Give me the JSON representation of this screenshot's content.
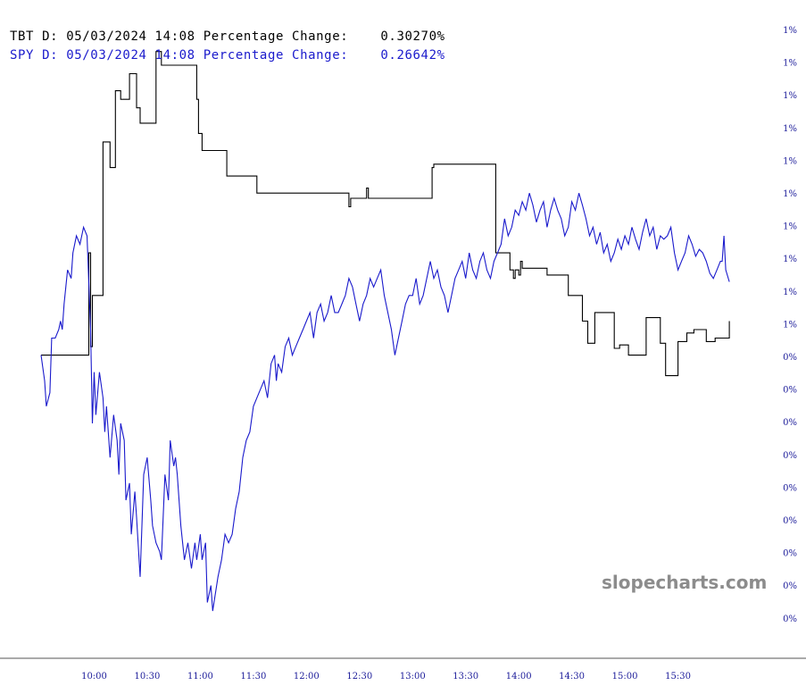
{
  "legend": [
    {
      "symbol": "TBT",
      "period": "D:",
      "date": "05/03/2024",
      "time": "14:08",
      "label": "Percentage Change:",
      "value": "0.30270%",
      "color": "#000000"
    },
    {
      "symbol": "SPY",
      "period": "D:",
      "date": "05/03/2024",
      "time": "14:08",
      "label": "Percentage Change:",
      "value": "0.26642%",
      "color": "#1a1acc"
    }
  ],
  "watermark": "slopecharts.com",
  "colors": {
    "tbt": "#000000",
    "spy": "#1a1acc",
    "axis_labels": "#1a1a99",
    "watermark": "#8c8c8c",
    "axis_line": "#555555"
  },
  "chart_data": {
    "type": "line",
    "title": "",
    "xlabel": "",
    "ylabel": "",
    "grid": false,
    "y_axis_side": "right",
    "x_ticks": [
      "10:00",
      "10:30",
      "11:00",
      "11:30",
      "12:00",
      "12:30",
      "13:00",
      "13:30",
      "14:00",
      "14:30",
      "15:00",
      "15:30"
    ],
    "x_tick_minutes": [
      600,
      630,
      660,
      690,
      720,
      750,
      780,
      810,
      840,
      870,
      900,
      930
    ],
    "x_range_minutes": [
      570,
      962
    ],
    "y_ticks": [
      "1%",
      "1%",
      "1%",
      "1%",
      "1%",
      "1%",
      "1%",
      "1%",
      "1%",
      "1%",
      "0%",
      "0%",
      "0%",
      "0%",
      "0%",
      "0%",
      "0%",
      "0%",
      "0%"
    ],
    "y_range": [
      -1.4,
      1.7
    ],
    "series": [
      {
        "name": "TBT",
        "color": "#000000",
        "step": true,
        "points": [
          [
            570,
            0
          ],
          [
            596,
            0
          ],
          [
            597,
            0.6
          ],
          [
            598,
            0.05
          ],
          [
            599,
            0.35
          ],
          [
            603,
            0.35
          ],
          [
            605,
            1.25
          ],
          [
            608,
            1.25
          ],
          [
            609,
            1.1
          ],
          [
            610,
            1.1
          ],
          [
            612,
            1.55
          ],
          [
            614,
            1.55
          ],
          [
            615,
            1.5
          ],
          [
            619,
            1.5
          ],
          [
            620,
            1.65
          ],
          [
            623,
            1.65
          ],
          [
            624,
            1.45
          ],
          [
            625,
            1.45
          ],
          [
            626,
            1.36
          ],
          [
            634,
            1.36
          ],
          [
            635,
            1.78
          ],
          [
            637,
            1.78
          ],
          [
            638,
            1.7
          ],
          [
            657,
            1.7
          ],
          [
            658,
            1.5
          ],
          [
            659,
            1.3
          ],
          [
            660,
            1.3
          ],
          [
            661,
            1.2
          ],
          [
            674,
            1.2
          ],
          [
            675,
            1.05
          ],
          [
            691,
            1.05
          ],
          [
            692,
            0.95
          ],
          [
            718,
            0.95
          ],
          [
            735,
            0.95
          ],
          [
            743,
            0.95
          ],
          [
            744,
            0.87
          ],
          [
            745,
            0.92
          ],
          [
            753,
            0.92
          ],
          [
            754,
            0.98
          ],
          [
            755,
            0.92
          ],
          [
            774,
            0.92
          ],
          [
            790,
            0.92
          ],
          [
            791,
            1.1
          ],
          [
            792,
            1.12
          ],
          [
            826,
            1.12
          ],
          [
            827,
            0.6
          ],
          [
            835,
            0.5
          ],
          [
            837,
            0.45
          ],
          [
            838,
            0.5
          ],
          [
            840,
            0.47
          ],
          [
            841,
            0.55
          ],
          [
            842,
            0.51
          ],
          [
            855,
            0.51
          ],
          [
            856,
            0.47
          ],
          [
            867,
            0.47
          ],
          [
            868,
            0.35
          ],
          [
            875,
            0.35
          ],
          [
            876,
            0.2
          ],
          [
            878,
            0.2
          ],
          [
            879,
            0.07
          ],
          [
            882,
            0.07
          ],
          [
            883,
            0.25
          ],
          [
            893,
            0.25
          ],
          [
            894,
            0.04
          ],
          [
            896,
            0.04
          ],
          [
            897,
            0.06
          ],
          [
            901,
            0.06
          ],
          [
            902,
            0
          ],
          [
            911,
            0
          ],
          [
            912,
            0.22
          ],
          [
            919,
            0.22
          ],
          [
            920,
            0.07
          ],
          [
            922,
            0.07
          ],
          [
            923,
            -0.12
          ],
          [
            929,
            -0.12
          ],
          [
            930,
            0.08
          ],
          [
            934,
            0.08
          ],
          [
            935,
            0.13
          ],
          [
            938,
            0.13
          ],
          [
            939,
            0.15
          ],
          [
            945,
            0.15
          ],
          [
            946,
            0.08
          ],
          [
            950,
            0.08
          ],
          [
            951,
            0.1
          ],
          [
            957,
            0.1
          ],
          [
            959,
            0.2
          ]
        ]
      },
      {
        "name": "SPY",
        "color": "#1a1acc",
        "step": false,
        "points": [
          [
            570,
            0
          ],
          [
            572,
            -0.15
          ],
          [
            573,
            -0.3
          ],
          [
            575,
            -0.22
          ],
          [
            576,
            0.1
          ],
          [
            578,
            0.1
          ],
          [
            580,
            0.15
          ],
          [
            581,
            0.2
          ],
          [
            582,
            0.15
          ],
          [
            583,
            0.3
          ],
          [
            585,
            0.5
          ],
          [
            587,
            0.45
          ],
          [
            588,
            0.6
          ],
          [
            590,
            0.7
          ],
          [
            592,
            0.65
          ],
          [
            594,
            0.75
          ],
          [
            596,
            0.7
          ],
          [
            598,
            0.15
          ],
          [
            599,
            -0.4
          ],
          [
            600,
            -0.1
          ],
          [
            601,
            -0.35
          ],
          [
            603,
            -0.1
          ],
          [
            605,
            -0.25
          ],
          [
            606,
            -0.45
          ],
          [
            607,
            -0.3
          ],
          [
            609,
            -0.6
          ],
          [
            611,
            -0.35
          ],
          [
            613,
            -0.5
          ],
          [
            614,
            -0.7
          ],
          [
            615,
            -0.4
          ],
          [
            617,
            -0.5
          ],
          [
            618,
            -0.85
          ],
          [
            620,
            -0.75
          ],
          [
            621,
            -1.05
          ],
          [
            623,
            -0.8
          ],
          [
            624,
            -0.95
          ],
          [
            626,
            -1.3
          ],
          [
            628,
            -0.7
          ],
          [
            630,
            -0.6
          ],
          [
            632,
            -0.85
          ],
          [
            633,
            -1.0
          ],
          [
            635,
            -1.1
          ],
          [
            637,
            -1.15
          ],
          [
            638,
            -1.2
          ],
          [
            640,
            -0.7
          ],
          [
            642,
            -0.85
          ],
          [
            643,
            -0.5
          ],
          [
            645,
            -0.65
          ],
          [
            646,
            -0.6
          ],
          [
            647,
            -0.7
          ],
          [
            649,
            -1.0
          ],
          [
            651,
            -1.2
          ],
          [
            653,
            -1.1
          ],
          [
            655,
            -1.25
          ],
          [
            657,
            -1.1
          ],
          [
            658,
            -1.2
          ],
          [
            660,
            -1.05
          ],
          [
            661,
            -1.2
          ],
          [
            663,
            -1.1
          ],
          [
            664,
            -1.45
          ],
          [
            666,
            -1.35
          ],
          [
            667,
            -1.5
          ],
          [
            670,
            -1.3
          ],
          [
            672,
            -1.2
          ],
          [
            674,
            -1.05
          ],
          [
            676,
            -1.1
          ],
          [
            678,
            -1.05
          ],
          [
            680,
            -0.9
          ],
          [
            682,
            -0.8
          ],
          [
            684,
            -0.6
          ],
          [
            686,
            -0.5
          ],
          [
            688,
            -0.45
          ],
          [
            690,
            -0.3
          ],
          [
            692,
            -0.25
          ],
          [
            694,
            -0.2
          ],
          [
            696,
            -0.15
          ],
          [
            698,
            -0.25
          ],
          [
            700,
            -0.05
          ],
          [
            702,
            0.0
          ],
          [
            703,
            -0.15
          ],
          [
            704,
            -0.05
          ],
          [
            706,
            -0.1
          ],
          [
            708,
            0.05
          ],
          [
            710,
            0.1
          ],
          [
            712,
            0.0
          ],
          [
            714,
            0.05
          ],
          [
            716,
            0.1
          ],
          [
            718,
            0.15
          ],
          [
            720,
            0.2
          ],
          [
            722,
            0.25
          ],
          [
            724,
            0.1
          ],
          [
            726,
            0.25
          ],
          [
            728,
            0.3
          ],
          [
            730,
            0.2
          ],
          [
            732,
            0.25
          ],
          [
            734,
            0.35
          ],
          [
            736,
            0.25
          ],
          [
            738,
            0.25
          ],
          [
            740,
            0.3
          ],
          [
            742,
            0.35
          ],
          [
            744,
            0.45
          ],
          [
            746,
            0.4
          ],
          [
            748,
            0.3
          ],
          [
            750,
            0.2
          ],
          [
            752,
            0.3
          ],
          [
            754,
            0.35
          ],
          [
            756,
            0.45
          ],
          [
            758,
            0.4
          ],
          [
            760,
            0.45
          ],
          [
            762,
            0.5
          ],
          [
            764,
            0.35
          ],
          [
            766,
            0.25
          ],
          [
            768,
            0.15
          ],
          [
            770,
            0.0
          ],
          [
            772,
            0.1
          ],
          [
            774,
            0.2
          ],
          [
            776,
            0.3
          ],
          [
            778,
            0.35
          ],
          [
            780,
            0.35
          ],
          [
            782,
            0.45
          ],
          [
            784,
            0.3
          ],
          [
            786,
            0.35
          ],
          [
            788,
            0.45
          ],
          [
            790,
            0.55
          ],
          [
            792,
            0.45
          ],
          [
            794,
            0.5
          ],
          [
            796,
            0.4
          ],
          [
            798,
            0.35
          ],
          [
            800,
            0.25
          ],
          [
            802,
            0.35
          ],
          [
            804,
            0.45
          ],
          [
            806,
            0.5
          ],
          [
            808,
            0.55
          ],
          [
            810,
            0.45
          ],
          [
            812,
            0.6
          ],
          [
            814,
            0.5
          ],
          [
            816,
            0.45
          ],
          [
            818,
            0.55
          ],
          [
            820,
            0.6
          ],
          [
            822,
            0.5
          ],
          [
            824,
            0.45
          ],
          [
            826,
            0.55
          ],
          [
            828,
            0.6
          ],
          [
            830,
            0.65
          ],
          [
            832,
            0.8
          ],
          [
            834,
            0.7
          ],
          [
            836,
            0.75
          ],
          [
            838,
            0.85
          ],
          [
            840,
            0.82
          ],
          [
            842,
            0.9
          ],
          [
            844,
            0.85
          ],
          [
            846,
            0.95
          ],
          [
            848,
            0.88
          ],
          [
            850,
            0.78
          ],
          [
            852,
            0.85
          ],
          [
            854,
            0.9
          ],
          [
            856,
            0.75
          ],
          [
            858,
            0.85
          ],
          [
            860,
            0.92
          ],
          [
            862,
            0.85
          ],
          [
            864,
            0.8
          ],
          [
            866,
            0.7
          ],
          [
            868,
            0.75
          ],
          [
            870,
            0.9
          ],
          [
            872,
            0.85
          ],
          [
            874,
            0.95
          ],
          [
            876,
            0.88
          ],
          [
            878,
            0.8
          ],
          [
            880,
            0.7
          ],
          [
            882,
            0.75
          ],
          [
            884,
            0.65
          ],
          [
            886,
            0.72
          ],
          [
            888,
            0.6
          ],
          [
            890,
            0.65
          ],
          [
            892,
            0.55
          ],
          [
            894,
            0.6
          ],
          [
            896,
            0.68
          ],
          [
            898,
            0.62
          ],
          [
            900,
            0.7
          ],
          [
            902,
            0.65
          ],
          [
            904,
            0.75
          ],
          [
            906,
            0.68
          ],
          [
            908,
            0.62
          ],
          [
            910,
            0.72
          ],
          [
            912,
            0.8
          ],
          [
            914,
            0.7
          ],
          [
            916,
            0.75
          ],
          [
            918,
            0.62
          ],
          [
            920,
            0.7
          ],
          [
            922,
            0.68
          ],
          [
            924,
            0.7
          ],
          [
            926,
            0.75
          ],
          [
            928,
            0.6
          ],
          [
            930,
            0.5
          ],
          [
            932,
            0.55
          ],
          [
            934,
            0.6
          ],
          [
            936,
            0.7
          ],
          [
            938,
            0.65
          ],
          [
            940,
            0.58
          ],
          [
            942,
            0.62
          ],
          [
            944,
            0.6
          ],
          [
            946,
            0.55
          ],
          [
            948,
            0.48
          ],
          [
            950,
            0.45
          ],
          [
            952,
            0.5
          ],
          [
            954,
            0.55
          ],
          [
            955,
            0.55
          ],
          [
            956,
            0.7
          ],
          [
            957,
            0.5
          ],
          [
            959,
            0.43
          ]
        ]
      }
    ]
  }
}
